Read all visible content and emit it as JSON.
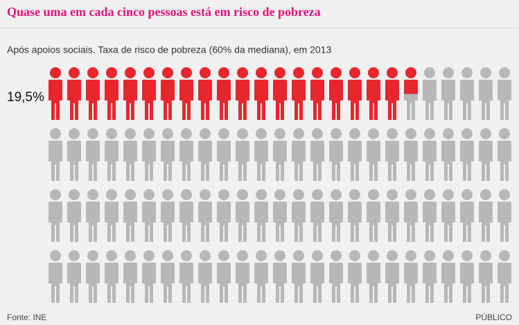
{
  "chart_data": {
    "type": "pictogram",
    "title": "Quase uma em cada cinco pessoas está em risco de pobreza",
    "subtitle": "Após apoios sociais. Taxa de risco de pobreza (60% da mediana), em 2013",
    "value": 19.5,
    "value_label": "19,5%",
    "total": 100,
    "color": "#e8262d",
    "base_color": "#b7b7b7"
  },
  "source": "Fonte: INE",
  "brand": "PÚBLICO"
}
